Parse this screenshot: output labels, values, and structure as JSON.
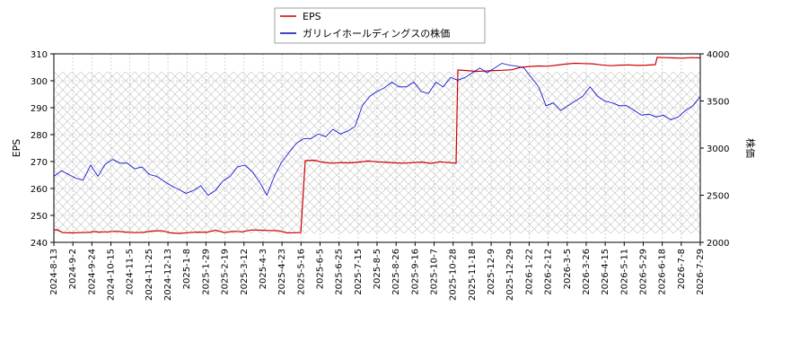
{
  "chart_data": {
    "type": "line",
    "legend": {
      "placement": "top-center",
      "entries": [
        "EPS",
        "ガリレイホールディングスの株価"
      ]
    },
    "left_axis": {
      "label": "EPS",
      "ylim": [
        240,
        310
      ],
      "ticks": [
        240,
        250,
        260,
        270,
        280,
        290,
        300,
        310
      ]
    },
    "right_axis": {
      "label": "株価",
      "ylim": [
        2000,
        4000
      ],
      "ticks": [
        2000,
        2500,
        3000,
        3500,
        4000
      ]
    },
    "x_ticks": [
      "2024-8-13",
      "2024-9-2",
      "2024-9-24",
      "2024-10-15",
      "2024-11-5",
      "2024-11-25",
      "2024-12-13",
      "2025-1-8",
      "2025-1-29",
      "2025-2-19",
      "2025-3-12",
      "2025-4-3",
      "2025-4-23",
      "2025-5-16",
      "2025-6-5",
      "2025-6-25",
      "2025-7-15",
      "2025-8-5",
      "2025-8-26",
      "2025-9-16",
      "2025-10-7",
      "2025-10-28",
      "2025-11-18",
      "2025-12-9",
      "2025-12-29",
      "2026-1-22",
      "2026-2-12",
      "2026-3-5",
      "2026-3-26",
      "2026-4-15",
      "2026-5-11",
      "2026-5-29",
      "2026-6-18",
      "2026-7-8",
      "2026-7-29"
    ],
    "grid": true,
    "series": [
      {
        "name": "EPS",
        "color": "#cc0000",
        "axis": "left",
        "points": [
          [
            0,
            244.6
          ],
          [
            0.3,
            244.7
          ],
          [
            1.0,
            243.6
          ],
          [
            2.0,
            243.5
          ],
          [
            3.0,
            243.6
          ],
          [
            4.0,
            243.7
          ],
          [
            4.5,
            244.0
          ],
          [
            5.0,
            243.8
          ],
          [
            6.0,
            243.9
          ],
          [
            7.0,
            244.1
          ],
          [
            8.0,
            243.8
          ],
          [
            9.0,
            243.6
          ],
          [
            10.0,
            243.7
          ],
          [
            11.0,
            244.2
          ],
          [
            12.0,
            244.3
          ],
          [
            13.0,
            243.5
          ],
          [
            14.0,
            243.3
          ],
          [
            15.0,
            243.6
          ],
          [
            16.0,
            243.8
          ],
          [
            17.0,
            243.7
          ],
          [
            18.0,
            244.5
          ],
          [
            19.0,
            243.6
          ],
          [
            20.0,
            244.1
          ],
          [
            21.0,
            243.9
          ],
          [
            22.0,
            244.6
          ],
          [
            23.0,
            244.5
          ],
          [
            24.0,
            244.4
          ],
          [
            25.0,
            244.3
          ],
          [
            26.0,
            243.5
          ],
          [
            27.5,
            243.6
          ],
          [
            28.0,
            270.3
          ],
          [
            29.0,
            270.5
          ],
          [
            30.0,
            269.7
          ],
          [
            31.0,
            269.4
          ],
          [
            32.0,
            269.6
          ],
          [
            33.0,
            269.5
          ],
          [
            34.0,
            269.8
          ],
          [
            35.0,
            270.2
          ],
          [
            36.0,
            269.9
          ],
          [
            37.0,
            269.7
          ],
          [
            38.0,
            269.5
          ],
          [
            39.0,
            269.4
          ],
          [
            40.0,
            269.6
          ],
          [
            41.0,
            269.8
          ],
          [
            42.0,
            269.3
          ],
          [
            43.0,
            269.9
          ],
          [
            44.0,
            269.6
          ],
          [
            44.8,
            269.4
          ],
          [
            45.0,
            304.0
          ],
          [
            46.0,
            303.8
          ],
          [
            47.0,
            303.5
          ],
          [
            48.0,
            303.6
          ],
          [
            49.0,
            303.8
          ],
          [
            50.0,
            303.9
          ],
          [
            51.0,
            304.1
          ],
          [
            52.0,
            305.0
          ],
          [
            53.0,
            305.3
          ],
          [
            54.0,
            305.5
          ],
          [
            55.0,
            305.4
          ],
          [
            56.0,
            305.8
          ],
          [
            57.0,
            306.2
          ],
          [
            58.0,
            306.5
          ],
          [
            59.0,
            306.4
          ],
          [
            60.0,
            306.3
          ],
          [
            61.0,
            305.9
          ],
          [
            62.0,
            305.6
          ],
          [
            63.0,
            305.8
          ],
          [
            64.0,
            305.9
          ],
          [
            65.0,
            305.7
          ],
          [
            66.0,
            305.8
          ],
          [
            67.0,
            306.0
          ],
          [
            67.2,
            308.7
          ],
          [
            68.0,
            308.6
          ],
          [
            69.0,
            308.5
          ],
          [
            70.0,
            308.4
          ],
          [
            71.0,
            308.6
          ],
          [
            72.0,
            308.5
          ]
        ]
      },
      {
        "name": "ガリレイホールディングスの株価",
        "color": "#0000cc",
        "axis": "right",
        "points": [
          [
            0,
            2700
          ],
          [
            1,
            2760
          ],
          [
            2,
            2720
          ],
          [
            3,
            2680
          ],
          [
            4,
            2660
          ],
          [
            5,
            2820
          ],
          [
            6,
            2700
          ],
          [
            7,
            2830
          ],
          [
            8,
            2880
          ],
          [
            9,
            2840
          ],
          [
            10,
            2840
          ],
          [
            11,
            2780
          ],
          [
            12,
            2800
          ],
          [
            13,
            2720
          ],
          [
            14,
            2700
          ],
          [
            15,
            2650
          ],
          [
            16,
            2600
          ],
          [
            17,
            2560
          ],
          [
            18,
            2520
          ],
          [
            19,
            2550
          ],
          [
            20,
            2600
          ],
          [
            21,
            2500
          ],
          [
            22,
            2550
          ],
          [
            23,
            2650
          ],
          [
            24,
            2700
          ],
          [
            25,
            2800
          ],
          [
            26,
            2820
          ],
          [
            27,
            2750
          ],
          [
            28,
            2640
          ],
          [
            29,
            2500
          ],
          [
            30,
            2700
          ],
          [
            31,
            2850
          ],
          [
            32,
            2950
          ],
          [
            33,
            3050
          ],
          [
            34,
            3100
          ],
          [
            35,
            3100
          ],
          [
            36,
            3150
          ],
          [
            37,
            3120
          ],
          [
            38,
            3200
          ],
          [
            39,
            3150
          ],
          [
            40,
            3180
          ],
          [
            41,
            3230
          ],
          [
            42,
            3450
          ],
          [
            43,
            3550
          ],
          [
            44,
            3600
          ],
          [
            45,
            3640
          ],
          [
            46,
            3700
          ],
          [
            47,
            3650
          ],
          [
            48,
            3650
          ],
          [
            49,
            3700
          ],
          [
            50,
            3600
          ],
          [
            51,
            3580
          ],
          [
            52,
            3700
          ],
          [
            53,
            3650
          ],
          [
            54,
            3750
          ],
          [
            55,
            3720
          ],
          [
            56,
            3750
          ],
          [
            57,
            3800
          ],
          [
            58,
            3850
          ],
          [
            59,
            3800
          ],
          [
            60,
            3850
          ],
          [
            61,
            3900
          ],
          [
            62,
            3880
          ],
          [
            63,
            3870
          ],
          [
            64,
            3850
          ],
          [
            65,
            3750
          ],
          [
            66,
            3650
          ],
          [
            67,
            3450
          ],
          [
            68,
            3480
          ],
          [
            69,
            3400
          ],
          [
            70,
            3450
          ],
          [
            71,
            3500
          ],
          [
            72,
            3550
          ],
          [
            73,
            3650
          ],
          [
            74,
            3550
          ],
          [
            75,
            3500
          ],
          [
            76,
            3480
          ],
          [
            77,
            3450
          ],
          [
            78,
            3450
          ],
          [
            79,
            3400
          ],
          [
            80,
            3350
          ],
          [
            81,
            3360
          ],
          [
            82,
            3330
          ],
          [
            83,
            3350
          ],
          [
            84,
            3300
          ],
          [
            85,
            3330
          ],
          [
            86,
            3400
          ],
          [
            87,
            3450
          ],
          [
            88,
            3550
          ]
        ]
      }
    ]
  }
}
